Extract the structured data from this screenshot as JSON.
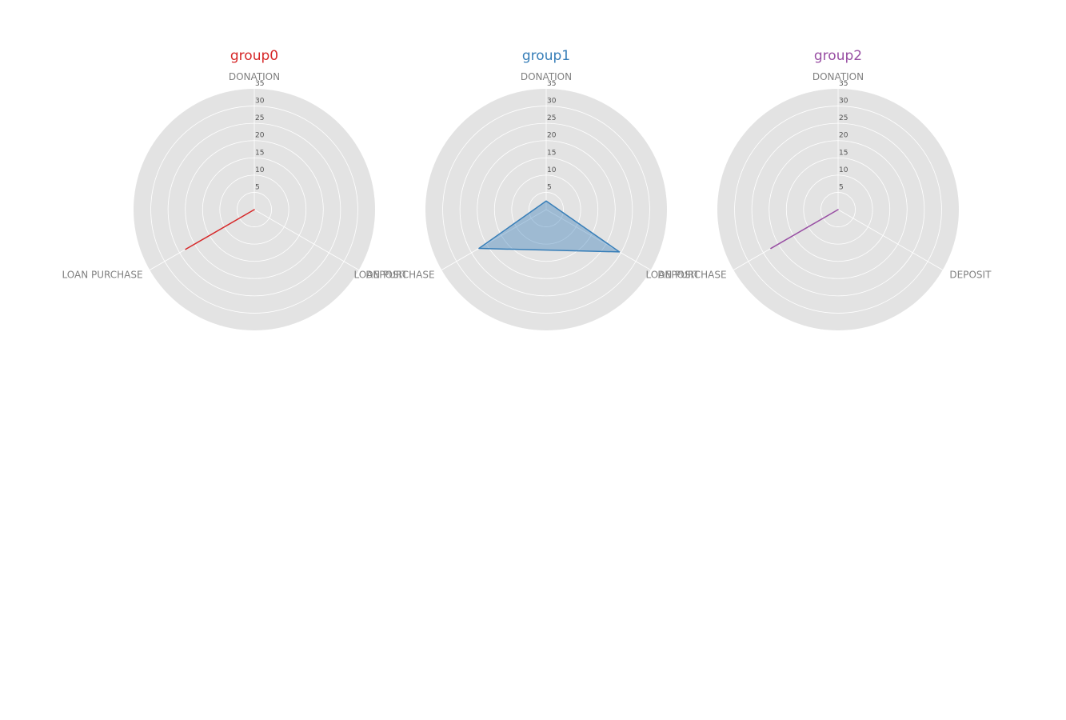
{
  "chart_data": [
    {
      "type": "radar",
      "title": "group0",
      "color": "#d62728",
      "filled": false,
      "axes": [
        "DONATION",
        "DEPOSIT",
        "LOAN PURCHASE"
      ],
      "values": [
        0,
        0,
        23
      ],
      "rlim": [
        0,
        35
      ],
      "rticks": [
        5,
        10,
        15,
        20,
        25,
        30,
        35
      ],
      "grid": true
    },
    {
      "type": "radar",
      "title": "group1",
      "color": "#377eb8",
      "filled": true,
      "axes": [
        "DONATION",
        "DEPOSIT",
        "LOAN PURCHASE"
      ],
      "values": [
        2.5,
        24.5,
        22.5
      ],
      "rlim": [
        0,
        35
      ],
      "rticks": [
        5,
        10,
        15,
        20,
        25,
        30,
        35
      ],
      "grid": true
    },
    {
      "type": "radar",
      "title": "group2",
      "color": "#984ea3",
      "filled": false,
      "axes": [
        "DONATION",
        "DEPOSIT",
        "LOAN PURCHASE"
      ],
      "values": [
        0,
        0,
        22.5
      ],
      "rlim": [
        0,
        35
      ],
      "rticks": [
        5,
        10,
        15,
        20,
        25,
        30,
        35
      ],
      "grid": true
    }
  ]
}
